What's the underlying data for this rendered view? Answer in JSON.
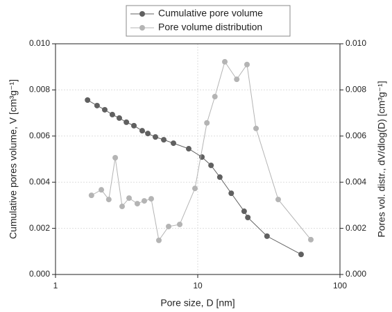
{
  "chart_data": {
    "type": "line",
    "xlabel": "Pore size, D [nm]",
    "ylabel": "Cumulative pores volume, V [cm³g⁻¹]",
    "y2label": "Pores vol. distr., dV/dlog(D) [cm³g⁻¹]",
    "xscale": "log",
    "xlim": [
      1,
      100
    ],
    "xticks": [
      1,
      10,
      100
    ],
    "ylim": [
      0,
      0.01
    ],
    "yticks": [
      {
        "value": 0,
        "label": "0.000"
      },
      {
        "value": 0.002,
        "label": "0.002"
      },
      {
        "value": 0.004,
        "label": "0.004"
      },
      {
        "value": 0.006,
        "label": "0.006"
      },
      {
        "value": 0.008,
        "label": "0.008"
      },
      {
        "value": 0.01,
        "label": "0.010"
      }
    ],
    "y2lim": [
      0,
      0.01
    ],
    "y2ticks": [
      {
        "value": 0,
        "label": "0.000"
      },
      {
        "value": 0.002,
        "label": "0.002"
      },
      {
        "value": 0.004,
        "label": "0.004"
      },
      {
        "value": 0.006,
        "label": "0.006"
      },
      {
        "value": 0.008,
        "label": "0.008"
      },
      {
        "value": 0.01,
        "label": "0.010"
      }
    ],
    "grid": true,
    "legend": "top",
    "series": [
      {
        "name": "Cumulative pore volume",
        "color": "#606060",
        "x": [
          1.68,
          1.96,
          2.22,
          2.51,
          2.81,
          3.15,
          3.56,
          4.07,
          4.46,
          5.04,
          5.77,
          6.75,
          8.64,
          10.7,
          12.4,
          14.3,
          17.2,
          21.2,
          22.5,
          30.7,
          53.3
        ],
        "values": [
          0.00756,
          0.00732,
          0.00714,
          0.00693,
          0.00678,
          0.0066,
          0.00645,
          0.00623,
          0.00611,
          0.00596,
          0.00584,
          0.00569,
          0.00545,
          0.00509,
          0.00473,
          0.00422,
          0.00352,
          0.00274,
          0.00247,
          0.00166,
          0.00087
        ]
      },
      {
        "name": "Pore volume distribution",
        "color": "#b4b4b4",
        "axis": "y2",
        "x": [
          1.79,
          2.1,
          2.37,
          2.63,
          2.94,
          3.29,
          3.76,
          4.21,
          4.71,
          5.33,
          6.24,
          7.47,
          9.56,
          11.6,
          13.2,
          15.5,
          18.8,
          22.2,
          25.7,
          36.8,
          62.4
        ],
        "values": [
          0.00343,
          0.00367,
          0.00325,
          0.00506,
          0.00295,
          0.00331,
          0.00307,
          0.00319,
          0.00328,
          0.00148,
          0.00208,
          0.00217,
          0.00373,
          0.00657,
          0.00771,
          0.00922,
          0.00846,
          0.0091,
          0.00633,
          0.00325,
          0.00151
        ]
      }
    ]
  }
}
